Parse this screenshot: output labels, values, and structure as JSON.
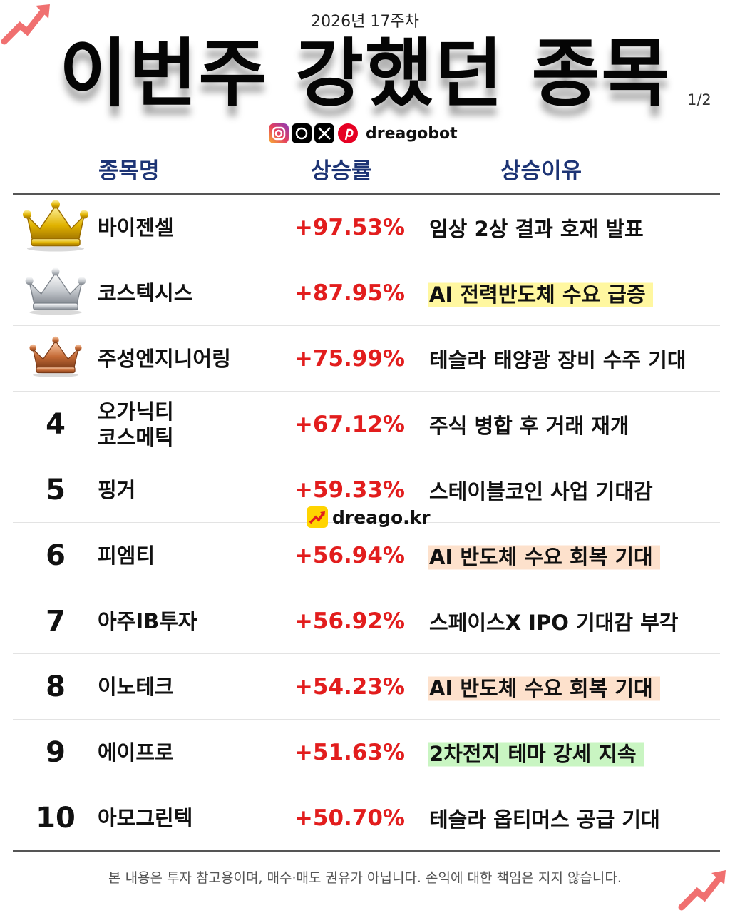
{
  "header": {
    "week": "2026년 17주차",
    "title": "이번주 강했던 종목",
    "page": "1/2",
    "handle": "dreagobot"
  },
  "columns": [
    "종목명",
    "상승률",
    "상승이유"
  ],
  "rows": [
    {
      "crown": "gold",
      "name": "바이젠셀",
      "change": "+97.53%",
      "reason": "임상 2상 결과 호재 발표"
    },
    {
      "crown": "silver",
      "name": "코스텍시스",
      "change": "+87.95%",
      "reason": "AI 전력반도체 수요 급증",
      "highlight": "#fff7a0"
    },
    {
      "crown": "bronze",
      "name": "주성엔지니어링",
      "change": "+75.99%",
      "reason": "테슬라 태양광 장비 수주 기대"
    },
    {
      "rank": "4",
      "name": "오가닉티\n코스메틱",
      "change": "+67.12%",
      "reason": "주식 병합 후 거래 재개"
    },
    {
      "rank": "5",
      "name": "핑거",
      "change": "+59.33%",
      "reason": "스테이블코인 사업 기대감"
    },
    {
      "rank": "6",
      "name": "피엠티",
      "change": "+56.94%",
      "reason": "AI 반도체 수요 회복 기대",
      "highlight": "#fde1cc"
    },
    {
      "rank": "7",
      "name": "아주IB투자",
      "change": "+56.92%",
      "reason": "스페이스X IPO 기대감 부각"
    },
    {
      "rank": "8",
      "name": "이노테크",
      "change": "+54.23%",
      "reason": "AI 반도체 수요 회복 기대",
      "highlight": "#fde1cc"
    },
    {
      "rank": "9",
      "name": "에이프로",
      "change": "+51.63%",
      "reason": "2차전지 테마 강세 지속",
      "highlight": "#c9f5c2"
    },
    {
      "rank": "10",
      "name": "아모그린텍",
      "change": "+50.70%",
      "reason": "테슬라 옵티머스 공급 기대"
    }
  ],
  "watermark": "dreago.kr",
  "footer": "본 내용은 투자 참고용이며, 매수·매도 권유가 아닙니다. 손익에 대한 책임은 지지 않습니다."
}
